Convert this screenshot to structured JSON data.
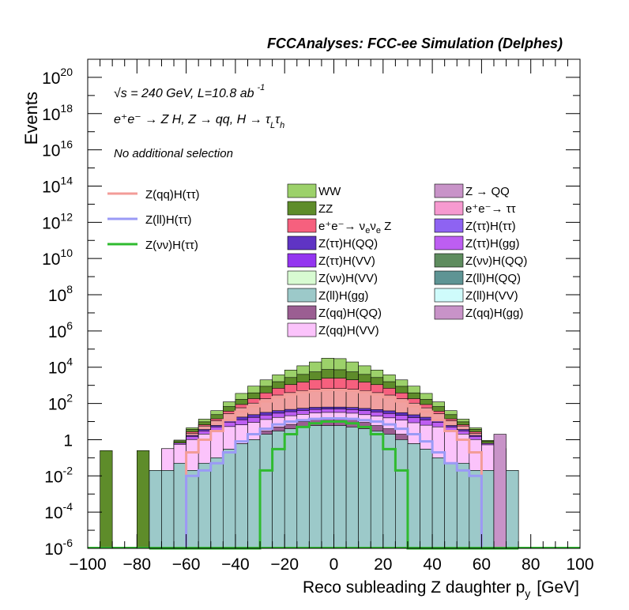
{
  "header": {
    "title": "FCCAnalyses: FCC-ee Simulation (Delphes)"
  },
  "annotations": {
    "energy": "√s = 240 GeV, L=10.8 ab",
    "energy_exp": "-1",
    "process": "e⁺e⁻ → Z H, Z → qq, H → τ",
    "process_sub1": "L",
    "process_tau2": "τ",
    "process_sub2": "h",
    "selection": "No additional selection"
  },
  "chart_data": {
    "type": "bar",
    "stacked": true,
    "log_y": true,
    "xlabel": "Reco subleading Z daughter p",
    "xlabel_sub": "y",
    "xlabel_unit": "[GeV]",
    "ylabel": "Events",
    "xlim": [
      -100,
      100
    ],
    "ylim_exp": [
      -6,
      21
    ],
    "x_tick_labels": [
      "−100",
      "−80",
      "−60",
      "−40",
      "−20",
      "0",
      "20",
      "40",
      "60",
      "80",
      "100"
    ],
    "y_tick_labels": [
      {
        "base": "10",
        "exp": "20"
      },
      {
        "base": "10",
        "exp": "18"
      },
      {
        "base": "10",
        "exp": "16"
      },
      {
        "base": "10",
        "exp": "14"
      },
      {
        "base": "10",
        "exp": "12"
      },
      {
        "base": "10",
        "exp": "10"
      },
      {
        "base": "10",
        "exp": "8"
      },
      {
        "base": "10",
        "exp": "6"
      },
      {
        "base": "10",
        "exp": "4"
      },
      {
        "base": "10",
        "exp": "2"
      },
      {
        "base": "1",
        "exp": ""
      },
      {
        "base": "10",
        "exp": "-2"
      },
      {
        "base": "10",
        "exp": "-4"
      },
      {
        "base": "10",
        "exp": "-6"
      }
    ],
    "bin_width": 5,
    "bin_low_edges": [
      -75,
      -70,
      -65,
      -60,
      -55,
      -50,
      -45,
      -40,
      -35,
      -30,
      -25,
      -20,
      -15,
      -10,
      -5,
      0,
      5,
      10,
      15,
      20,
      25,
      30,
      35,
      40,
      45,
      50,
      55,
      60,
      65,
      70
    ],
    "stack_totals": [
      0.02,
      0.1,
      0.6,
      4,
      15,
      40,
      120,
      350,
      900,
      2000,
      3800,
      7000,
      12000,
      20000,
      32000,
      30000,
      20000,
      12000,
      7000,
      3800,
      2000,
      900,
      350,
      120,
      40,
      15,
      4,
      0.6,
      0.1,
      0.02
    ],
    "stack_layers": [
      {
        "name": "Z(ll)H(gg)",
        "color": "#9cc9c9",
        "values": [
          0.02,
          0.02,
          0.05,
          0.02,
          0.05,
          0.1,
          0.3,
          0.6,
          1,
          2,
          3,
          4,
          5,
          6,
          6,
          6,
          5,
          4,
          3,
          2,
          1,
          0.6,
          0.3,
          0.1,
          0.05,
          0.05,
          0.02,
          0.02,
          0.02,
          0.02
        ]
      },
      {
        "name": "Z(qq)H(QQ)",
        "color": "#9b5e92",
        "values": [
          0,
          0,
          0,
          0,
          0,
          0,
          0,
          0,
          0,
          1,
          2,
          3,
          5,
          8,
          10,
          10,
          8,
          5,
          3,
          2,
          1,
          0,
          0,
          0,
          0,
          0,
          0,
          0,
          0,
          0
        ]
      },
      {
        "name": "Z(qq)H(VV)",
        "color": "#fbc3fb",
        "values": [
          0,
          0.3,
          0.5,
          1,
          2,
          3,
          5,
          6,
          8,
          10,
          12,
          14,
          15,
          16,
          16,
          16,
          16,
          15,
          14,
          12,
          10,
          8,
          6,
          5,
          3,
          2,
          1,
          0.5,
          0.3,
          0
        ]
      },
      {
        "name": "Z(ττ)H(gg)",
        "color": "#bd5ef2",
        "values": [
          0,
          0,
          0.1,
          0.5,
          1,
          2,
          4,
          6,
          8,
          10,
          12,
          14,
          16,
          17,
          17,
          17,
          17,
          16,
          14,
          12,
          10,
          8,
          6,
          4,
          2,
          1,
          0.5,
          0.1,
          0,
          0
        ]
      },
      {
        "name": "Z(ττ)H(QQ)",
        "color": "#5f34c4",
        "values": [
          0,
          0,
          0,
          0.2,
          0.6,
          1,
          3,
          5,
          7,
          9,
          11,
          12,
          13,
          14,
          14,
          14,
          14,
          13,
          12,
          11,
          9,
          7,
          5,
          3,
          1,
          0.6,
          0.2,
          0,
          0,
          0
        ]
      },
      {
        "name": "Z(qq)H(ττ)",
        "color": "#f0a0a0",
        "values": [
          0,
          0,
          0,
          0.5,
          2,
          5,
          15,
          40,
          80,
          150,
          250,
          350,
          450,
          550,
          600,
          600,
          550,
          450,
          350,
          250,
          150,
          80,
          40,
          15,
          5,
          2,
          0.5,
          0,
          0,
          0
        ]
      },
      {
        "name": "e⁺e⁻→ ν_eν_e Z",
        "color": "#f6607e",
        "values": [
          0,
          0,
          0,
          0.5,
          1,
          3,
          10,
          30,
          80,
          200,
          400,
          700,
          1000,
          1400,
          1800,
          1800,
          1400,
          1000,
          700,
          400,
          200,
          80,
          30,
          10,
          3,
          1,
          0.5,
          0,
          0,
          0
        ]
      },
      {
        "name": "ZZ",
        "color": "#5e8c2a",
        "values": [
          0,
          0,
          0.2,
          1,
          3,
          10,
          30,
          80,
          200,
          500,
          900,
          1600,
          2500,
          3500,
          5000,
          4800,
          3500,
          2500,
          1600,
          900,
          500,
          200,
          80,
          30,
          10,
          3,
          1,
          0.2,
          0,
          0
        ]
      },
      {
        "name": "WW",
        "color": "#9cd16a",
        "values": [
          0,
          0,
          0.1,
          0.8,
          4,
          16,
          55,
          190,
          520,
          1120,
          2200,
          4300,
          8000,
          14000,
          24000,
          22500,
          14000,
          8000,
          4300,
          2200,
          1120,
          520,
          190,
          55,
          16,
          4,
          0.8,
          0.1,
          0,
          0
        ]
      }
    ],
    "outlier_bins": [
      {
        "x_low": -95,
        "value": 0.25,
        "color": "#5e8c2a",
        "label": "ZZ"
      },
      {
        "x_low": -80,
        "value": 0.25,
        "color": "#5e8c2a",
        "label": "ZZ"
      },
      {
        "x_low": 65,
        "value": 2,
        "color": "#c893c8",
        "label": "Z(qq)H(gg)"
      }
    ],
    "signal_lines": [
      {
        "name": "Z(qq)H(ττ)",
        "color": "#f39c98",
        "values": [
          0,
          0,
          0,
          0.2,
          1,
          3,
          12,
          35,
          70,
          130,
          220,
          320,
          420,
          500,
          560,
          560,
          500,
          420,
          320,
          220,
          130,
          70,
          35,
          12,
          3,
          1,
          0.2,
          0,
          0,
          0
        ]
      },
      {
        "name": "Z(ll)H(ττ)",
        "color": "#9a9af6",
        "values": [
          0,
          0,
          0,
          0.01,
          0.02,
          0.05,
          0.2,
          0.8,
          2,
          4,
          7,
          10,
          12,
          14,
          15,
          15,
          14,
          12,
          10,
          7,
          4,
          2,
          0.8,
          0.2,
          0.05,
          0.02,
          0.01,
          0,
          0,
          0
        ]
      },
      {
        "name": "Z(νν)H(ττ)",
        "color": "#2fbb2f",
        "values": [
          0,
          0,
          0,
          0,
          0,
          0,
          0,
          0,
          0,
          0.02,
          0.3,
          2,
          5,
          8,
          10,
          10,
          8,
          5,
          2,
          0.3,
          0.02,
          0,
          0,
          0,
          0,
          0,
          0,
          0,
          0,
          0
        ]
      }
    ],
    "legend_lines": [
      {
        "label": "Z(qq)H(ττ)",
        "color": "#f39c98"
      },
      {
        "label": "Z(ll)H(ττ)",
        "color": "#9a9af6"
      },
      {
        "label": "Z(νν)H(ττ)",
        "color": "#2fbb2f"
      }
    ],
    "legend_boxes_col1": [
      {
        "label": "WW",
        "color": "#9cd16a"
      },
      {
        "label": "ZZ",
        "color": "#5e8c2a"
      },
      {
        "label": "e⁺e⁻→ ν",
        "sub1": "e",
        "mid": "ν",
        "sub2": "e",
        "tail": " Z",
        "color": "#f6607e"
      },
      {
        "label": "Z(ττ)H(QQ)",
        "color": "#5f34c4"
      },
      {
        "label": "Z(ττ)H(VV)",
        "color": "#9435f0"
      },
      {
        "label": "Z(νν)H(VV)",
        "color": "#d8fbd2"
      },
      {
        "label": "Z(ll)H(gg)",
        "color": "#9cc9c9"
      },
      {
        "label": "Z(qq)H(QQ)",
        "color": "#9b5e92"
      },
      {
        "label": "Z(qq)H(VV)",
        "color": "#fbc3fb"
      }
    ],
    "legend_boxes_col2": [
      {
        "label": "Z → QQ",
        "color": "#c893c8"
      },
      {
        "label": "e⁺e⁻→ ττ",
        "color": "#f69ad0"
      },
      {
        "label": "Z(ττ)H(ττ)",
        "color": "#8e63f2"
      },
      {
        "label": "Z(ττ)H(gg)",
        "color": "#bd5ef2"
      },
      {
        "label": "Z(νν)H(QQ)",
        "color": "#5e8c5e"
      },
      {
        "label": "Z(ll)H(QQ)",
        "color": "#5e9494"
      },
      {
        "label": "Z(ll)H(VV)",
        "color": "#cffbfb"
      },
      {
        "label": "Z(qq)H(gg)",
        "color": "#c893c8"
      }
    ]
  }
}
